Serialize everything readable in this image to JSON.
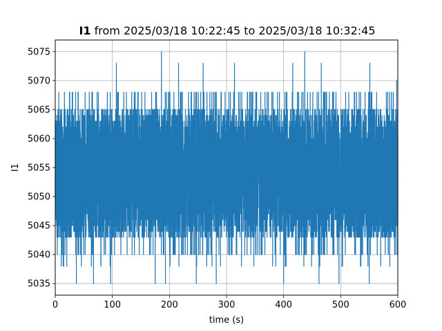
{
  "chart_data": {
    "type": "line",
    "title_bold": "I1",
    "title_rest": " from 2025/03/18 10:22:45 to 2025/03/18 10:32:45",
    "xlabel": "time (s)",
    "ylabel": "I1",
    "xlim": [
      0,
      600
    ],
    "ylim": [
      5033,
      5077
    ],
    "xticks": [
      0,
      100,
      200,
      300,
      400,
      500,
      600
    ],
    "yticks": [
      5035,
      5040,
      5045,
      5050,
      5055,
      5060,
      5065,
      5070,
      5075
    ],
    "grid": true,
    "series_color": "#1f77b4",
    "series": [
      {
        "x_start": 0,
        "x_end": 600,
        "sample_interval": 0.1,
        "typical_min": 5043,
        "typical_max": 5065,
        "spikes_high": [
          {
            "x": 107,
            "y": 5073
          },
          {
            "x": 186,
            "y": 5075
          },
          {
            "x": 216,
            "y": 5073
          },
          {
            "x": 259,
            "y": 5073
          },
          {
            "x": 314,
            "y": 5073
          },
          {
            "x": 437,
            "y": 5075
          },
          {
            "x": 416,
            "y": 5073
          },
          {
            "x": 466,
            "y": 5073
          },
          {
            "x": 551,
            "y": 5073
          },
          {
            "x": 598,
            "y": 5070
          }
        ],
        "spikes_low": [
          {
            "x": 37,
            "y": 5035
          },
          {
            "x": 67,
            "y": 5035
          },
          {
            "x": 97,
            "y": 5035
          },
          {
            "x": 175,
            "y": 5035
          },
          {
            "x": 193,
            "y": 5035
          },
          {
            "x": 247,
            "y": 5035
          },
          {
            "x": 282,
            "y": 5035
          },
          {
            "x": 400,
            "y": 5035
          },
          {
            "x": 462,
            "y": 5035
          },
          {
            "x": 497,
            "y": 5035
          },
          {
            "x": 550,
            "y": 5035
          }
        ]
      }
    ]
  }
}
